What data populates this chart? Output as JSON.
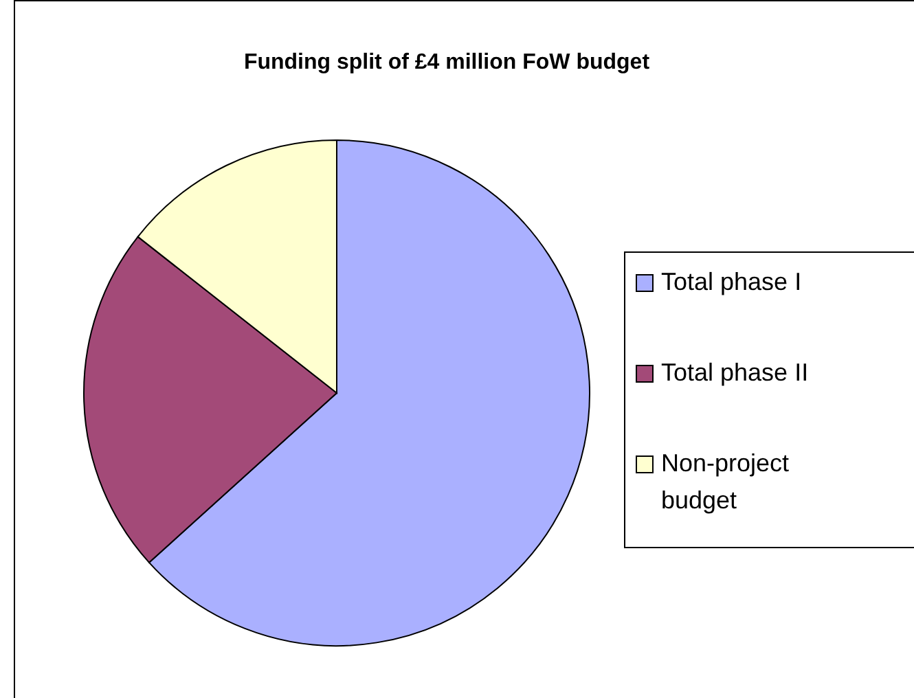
{
  "chart_data": {
    "type": "pie",
    "title": "Funding split of £4 million FoW budget",
    "categories": [
      "Total phase I",
      "Total phase II",
      "Non-project budget"
    ],
    "values": [
      63.3,
      22.3,
      14.4
    ],
    "colors": [
      "#aab0ff",
      "#a34a78",
      "#ffffd0"
    ],
    "legend": "right"
  }
}
